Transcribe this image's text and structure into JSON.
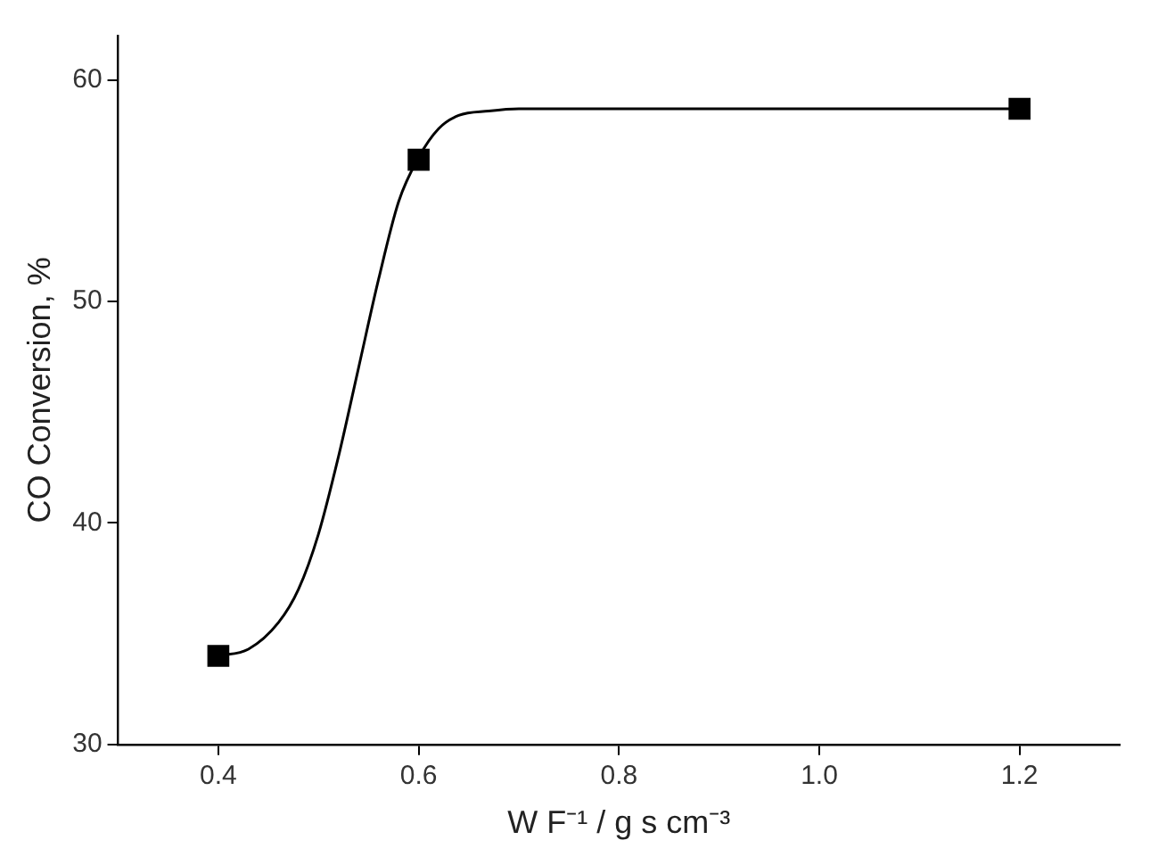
{
  "chart_data": {
    "type": "scatter",
    "xlabel": "W F⁻¹ / g s cm⁻³",
    "ylabel": "CO Conversion, %",
    "xlim": [
      0.3,
      1.3
    ],
    "ylim": [
      30,
      62
    ],
    "xticks": [
      {
        "value": 0.4,
        "label": "0.4"
      },
      {
        "value": 0.6,
        "label": "0.6"
      },
      {
        "value": 0.8,
        "label": "0.8"
      },
      {
        "value": 1.0,
        "label": "1.0"
      },
      {
        "value": 1.2,
        "label": "1.2"
      }
    ],
    "yticks": [
      30,
      40,
      50,
      60
    ],
    "grid": false,
    "legend": false,
    "series": [
      {
        "type": "line",
        "color": "#000000",
        "marker": "none",
        "line_style": "solid",
        "x": [
          0.4,
          0.43,
          0.46,
          0.48,
          0.5,
          0.52,
          0.54,
          0.56,
          0.58,
          0.6,
          0.62,
          0.64,
          0.67,
          0.7,
          0.8,
          1.0,
          1.2
        ],
        "values": [
          34,
          34.3,
          35.5,
          37,
          39.5,
          43,
          47,
          51,
          54.5,
          56.5,
          57.8,
          58.4,
          58.6,
          58.7,
          58.7,
          58.7,
          58.7
        ]
      },
      {
        "color": "#000000",
        "marker": "square",
        "x": [
          0.4,
          0.6,
          1.2
        ],
        "values": [
          34,
          56.4,
          58.7
        ]
      }
    ]
  }
}
